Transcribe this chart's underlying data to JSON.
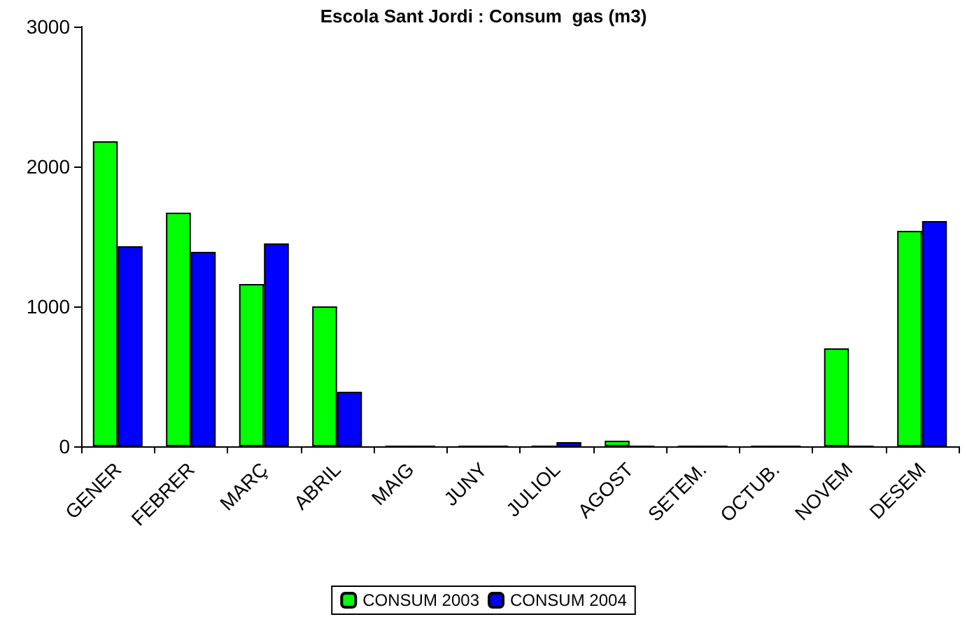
{
  "chart_data": {
    "type": "bar",
    "title": "Escola Sant Jordi : Consum  gas (m3)",
    "categories": [
      "GENER",
      "FEBRER",
      "MARÇ",
      "ABRIL",
      "MAIG",
      "JUNY",
      "JULIOL",
      "AGOST",
      "SETEM.",
      "OCTUB.",
      "NOVEM",
      "DESEM"
    ],
    "series": [
      {
        "name": "CONSUM 2003",
        "color": "#00ff00",
        "values": [
          2180,
          1670,
          1160,
          1000,
          0,
          0,
          0,
          40,
          0,
          0,
          700,
          1540
        ]
      },
      {
        "name": "CONSUM 2004",
        "color": "#0000ff",
        "values": [
          1430,
          1390,
          1450,
          390,
          0,
          0,
          30,
          0,
          0,
          0,
          0,
          1610
        ]
      }
    ],
    "ylim": [
      0,
      3000
    ],
    "yticks": [
      0,
      1000,
      2000,
      3000
    ],
    "grid": false,
    "legend": "bottom"
  }
}
